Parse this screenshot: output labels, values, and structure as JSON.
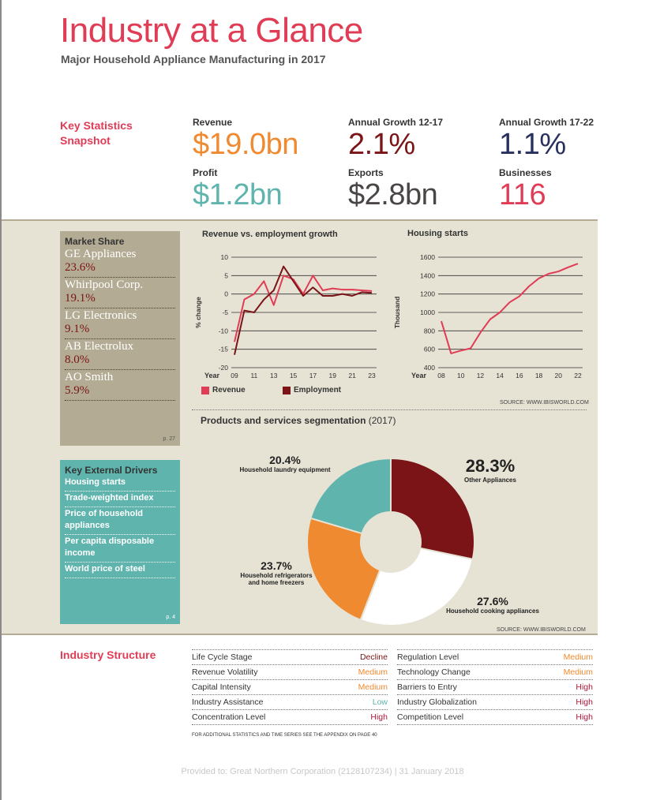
{
  "header": {
    "title": "Industry at a Glance",
    "subtitle": "Major Household Appliance Manufacturing in 2017"
  },
  "key_stats": {
    "label": "Key Statistics Snapshot",
    "items": [
      {
        "label": "Revenue",
        "value": "$19.0bn",
        "color": "#f08a30"
      },
      {
        "label": "Annual Growth 12-17",
        "value": "2.1%",
        "color": "#7b1416"
      },
      {
        "label": "Annual Growth 17-22",
        "value": "1.1%",
        "color": "#27305e"
      },
      {
        "label": "Profit",
        "value": "$1.2bn",
        "color": "#5fb5ad"
      },
      {
        "label": "Exports",
        "value": "$2.8bn",
        "color": "#4b4646"
      },
      {
        "label": "Businesses",
        "value": "116",
        "color": "#e03c56"
      }
    ]
  },
  "market_share": {
    "heading": "Market Share",
    "items": [
      {
        "name": "GE Appliances",
        "value": "23.6%"
      },
      {
        "name": "Whirlpool Corp.",
        "value": "19.1%"
      },
      {
        "name": "LG Electronics",
        "value": "9.1%"
      },
      {
        "name": "AB Electrolux",
        "value": "8.0%"
      },
      {
        "name": "AO Smith",
        "value": "5.9%"
      }
    ],
    "page_ref": "p. 27"
  },
  "key_drivers": {
    "heading": "Key External Drivers",
    "items": [
      "Housing starts",
      "Trade-weighted index",
      "Price of household appliances",
      "Per capita disposable income",
      "World price of steel"
    ],
    "page_ref": "p. 4"
  },
  "chart_data": [
    {
      "type": "line",
      "title": "Revenue vs. employment growth",
      "xlabel": "Year",
      "ylabel": "% change",
      "x": [
        2009,
        2010,
        2011,
        2012,
        2013,
        2014,
        2015,
        2016,
        2017,
        2018,
        2019,
        2020,
        2021,
        2022,
        2023
      ],
      "xticks": [
        "09",
        "11",
        "13",
        "15",
        "17",
        "19",
        "21",
        "23"
      ],
      "yticks": [
        "10",
        "5",
        "0",
        "-5",
        "-10",
        "-15",
        "-20"
      ],
      "ylim": [
        -20,
        10
      ],
      "series": [
        {
          "name": "Revenue",
          "color": "#e03c56",
          "values": [
            -13,
            -1.5,
            0,
            3.5,
            -3,
            5,
            4,
            0,
            5,
            1,
            1.5,
            1.2,
            1.2,
            1,
            0.8
          ]
        },
        {
          "name": "Employment",
          "color": "#7b1416",
          "values": [
            -16.5,
            -4.5,
            -5,
            -1.5,
            1,
            7.5,
            3.5,
            -0.5,
            1.8,
            -0.5,
            -0.5,
            0,
            -0.5,
            0.5,
            0.3
          ]
        }
      ]
    },
    {
      "type": "line",
      "title": "Housing starts",
      "xlabel": "Year",
      "ylabel": "Thousand",
      "x": [
        2008,
        2009,
        2010,
        2011,
        2012,
        2013,
        2014,
        2015,
        2016,
        2017,
        2018,
        2019,
        2020,
        2021,
        2022
      ],
      "xticks": [
        "08",
        "10",
        "12",
        "14",
        "16",
        "18",
        "20",
        "22"
      ],
      "yticks": [
        "1600",
        "1400",
        "1200",
        "1000",
        "800",
        "600",
        "400"
      ],
      "ylim": [
        400,
        1600
      ],
      "series": [
        {
          "name": "Housing starts",
          "color": "#e03c56",
          "values": [
            905,
            555,
            585,
            610,
            780,
            925,
            1000,
            1110,
            1175,
            1285,
            1370,
            1420,
            1445,
            1490,
            1530
          ]
        }
      ]
    },
    {
      "type": "pie",
      "title": "Products and services segmentation",
      "subtitle": "(2017)",
      "slices": [
        {
          "label": "Other Appliances",
          "value": 28.3,
          "color": "#7b1416"
        },
        {
          "label": "Household cooking appliances",
          "value": 27.6,
          "color": "#ffffff"
        },
        {
          "label": "Household refrigerators and home freezers",
          "value": 23.7,
          "color": "#f08a30"
        },
        {
          "label": "Household laundry equipment",
          "value": 20.4,
          "color": "#5fb5ad"
        }
      ]
    }
  ],
  "pie_labels": {
    "laundry": {
      "pct": "20.4%",
      "desc": "Household laundry equipment"
    },
    "other": {
      "pct": "28.3%",
      "desc": "Other Appliances"
    },
    "fridge": {
      "pct": "23.7%",
      "desc1": "Household refrigerators",
      "desc2": "and home freezers"
    },
    "cooking": {
      "pct": "27.6%",
      "desc": "Household cooking appliances"
    }
  },
  "legend": {
    "revenue": "Revenue",
    "employment": "Employment"
  },
  "sources": {
    "charts": "SOURCE: WWW.IBISWORLD.COM",
    "pie": "SOURCE: WWW.IBISWORLD.COM"
  },
  "industry_structure": {
    "label": "Industry Structure",
    "left": [
      {
        "name": "Life Cycle Stage",
        "value": "Decline",
        "color": "#7b1416"
      },
      {
        "name": "Revenue Volatility",
        "value": "Medium",
        "color": "#f08a30"
      },
      {
        "name": "Capital Intensity",
        "value": "Medium",
        "color": "#f08a30"
      },
      {
        "name": "Industry Assistance",
        "value": "Low",
        "color": "#5fb5ad"
      },
      {
        "name": "Concentration Level",
        "value": "High",
        "color": "#b0183a"
      }
    ],
    "right": [
      {
        "name": "Regulation Level",
        "value": "Medium",
        "color": "#f08a30"
      },
      {
        "name": "Technology Change",
        "value": "Medium",
        "color": "#f08a30"
      },
      {
        "name": "Barriers to Entry",
        "value": "High",
        "color": "#b0183a"
      },
      {
        "name": "Industry Globalization",
        "value": "High",
        "color": "#b0183a"
      },
      {
        "name": "Competition Level",
        "value": "High",
        "color": "#b0183a"
      }
    ],
    "footnote": "FOR ADDITIONAL STATISTICS AND TIME SERIES SEE THE APPENDIX ON PAGE 40"
  },
  "provided_to": "Provided to: Great Northern Corporation (2128107234) | 31 January 2018"
}
